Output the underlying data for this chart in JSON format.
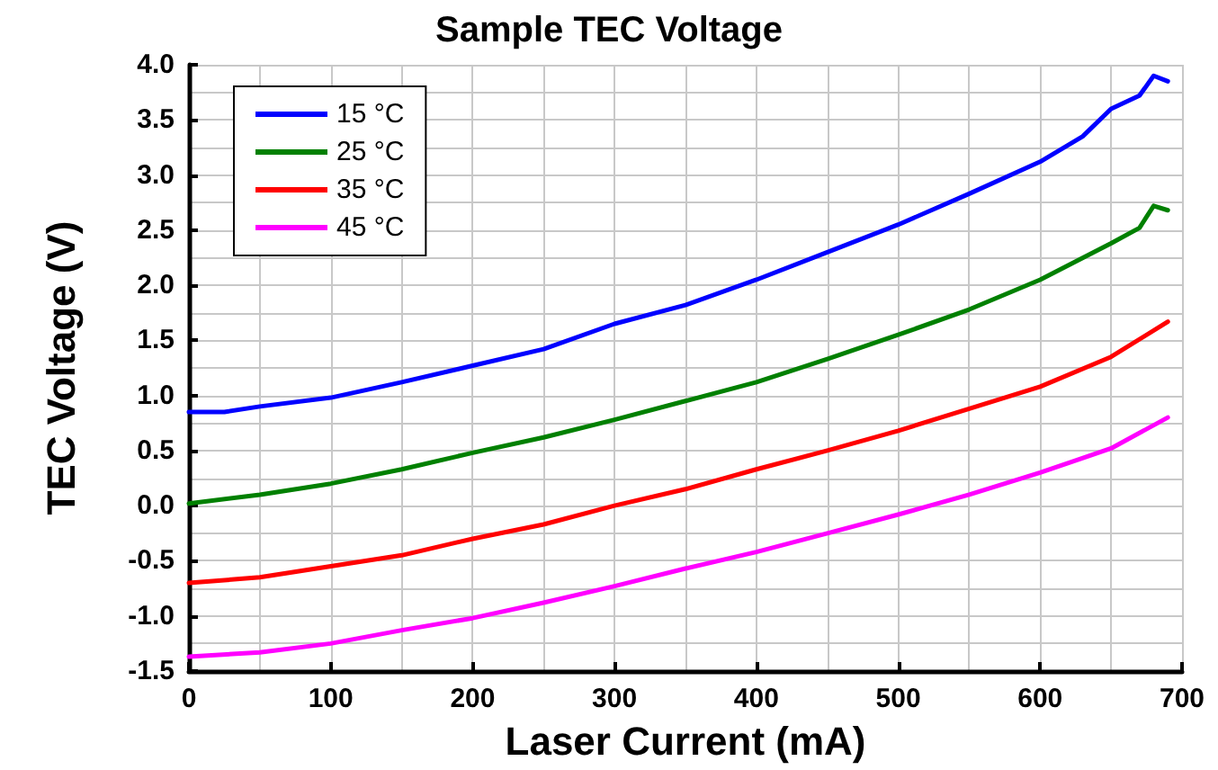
{
  "chart_data": {
    "type": "line",
    "title": "Sample TEC Voltage",
    "xlabel": "Laser Current (mA)",
    "ylabel": "TEC Voltage (V)",
    "xlim": [
      0,
      700
    ],
    "xticks": [
      0,
      100,
      200,
      300,
      400,
      500,
      600,
      700
    ],
    "ylim": [
      -1.5,
      4
    ],
    "yticks": [
      -1.5,
      {
        "value": -1,
        "label": "-1.0"
      },
      -0.5,
      {
        "value": 0,
        "label": "0.0"
      },
      0.5,
      {
        "value": 1,
        "label": "1.0"
      },
      1.5,
      {
        "value": 2,
        "label": "2.0"
      },
      2.5,
      {
        "value": 3,
        "label": "3.0"
      },
      3.5,
      {
        "value": 4,
        "label": "4.0"
      }
    ],
    "grid": true,
    "legend": "top left",
    "marker": "none",
    "line_style": "solid",
    "series": [
      {
        "name": "15 °C",
        "color": "#0000ff",
        "x": [
          0,
          25,
          50,
          100,
          150,
          200,
          250,
          300,
          350,
          400,
          450,
          500,
          550,
          600,
          630,
          650,
          670,
          680,
          690
        ],
        "values": [
          0.85,
          0.85,
          0.9,
          0.98,
          1.12,
          1.27,
          1.42,
          1.65,
          1.82,
          2.05,
          2.3,
          2.55,
          2.83,
          3.12,
          3.35,
          3.6,
          3.72,
          3.9,
          3.85
        ]
      },
      {
        "name": "25 °C",
        "color": "#008000",
        "x": [
          0,
          50,
          100,
          150,
          200,
          250,
          300,
          350,
          400,
          450,
          500,
          550,
          600,
          650,
          670,
          680,
          690
        ],
        "values": [
          0.02,
          0.1,
          0.2,
          0.33,
          0.48,
          0.62,
          0.78,
          0.95,
          1.12,
          1.33,
          1.55,
          1.78,
          2.05,
          2.38,
          2.52,
          2.72,
          2.68
        ]
      },
      {
        "name": "35 °C",
        "color": "#ff0000",
        "x": [
          0,
          50,
          100,
          150,
          200,
          250,
          300,
          350,
          400,
          450,
          500,
          550,
          600,
          650,
          690
        ],
        "values": [
          -0.7,
          -0.65,
          -0.55,
          -0.45,
          -0.3,
          -0.17,
          0,
          0.15,
          0.33,
          0.5,
          0.68,
          0.88,
          1.08,
          1.35,
          1.67
        ]
      },
      {
        "name": "45 °C",
        "color": "#ff00ff",
        "x": [
          0,
          50,
          100,
          150,
          200,
          250,
          300,
          350,
          400,
          450,
          500,
          550,
          600,
          650,
          690
        ],
        "values": [
          -1.37,
          -1.33,
          -1.25,
          -1.13,
          -1.02,
          -0.88,
          -0.73,
          -0.57,
          -0.42,
          -0.25,
          -0.08,
          0.1,
          0.3,
          0.52,
          0.8
        ]
      }
    ]
  }
}
